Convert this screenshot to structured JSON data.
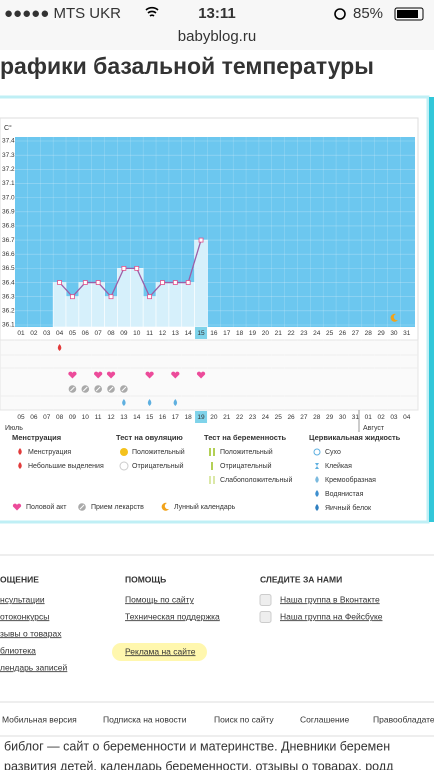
{
  "status_bar": {
    "carrier": "●●●●● MTS UKR",
    "time": "13:11",
    "battery": "85%"
  },
  "url": "babyblog.ru",
  "heading": "рафики базальной температуры",
  "chart_data": {
    "type": "line",
    "y_unit": "С°",
    "ylim": [
      36.1,
      37.4
    ],
    "yticks": [
      36.1,
      36.2,
      36.3,
      36.4,
      36.5,
      36.6,
      36.7,
      36.8,
      36.9,
      {
        "value": 37.0,
        "label": "37.0"
      },
      37.1,
      37.2,
      37.3,
      37.4
    ],
    "days": [
      {
        "label": "01"
      },
      {
        "label": "02"
      },
      {
        "label": "03"
      },
      {
        "label": "04"
      },
      {
        "label": "05"
      },
      {
        "label": "06"
      },
      {
        "label": "07"
      },
      {
        "label": "08"
      },
      {
        "label": "09"
      },
      {
        "label": "10"
      },
      {
        "label": "11"
      },
      {
        "label": "12"
      },
      {
        "label": "13"
      },
      {
        "label": "14"
      },
      {
        "label": "15",
        "current": true
      },
      {
        "label": "16"
      },
      {
        "label": "17"
      },
      {
        "label": "18"
      },
      {
        "label": "19"
      },
      {
        "label": "20"
      },
      {
        "label": "21"
      },
      {
        "label": "22"
      },
      {
        "label": "23"
      },
      {
        "label": "24"
      },
      {
        "label": "25"
      },
      {
        "label": "26"
      },
      {
        "label": "27"
      },
      {
        "label": "28"
      },
      {
        "label": "29"
      },
      {
        "label": "30"
      },
      {
        "label": "31"
      }
    ],
    "dates": [
      {
        "label": "05",
        "weekend": true
      },
      {
        "label": "06",
        "weekend": true
      },
      {
        "label": "07"
      },
      {
        "label": "08"
      },
      {
        "label": "09"
      },
      {
        "label": "10"
      },
      {
        "label": "11"
      },
      {
        "label": "12",
        "weekend": true
      },
      {
        "label": "13",
        "weekend": true
      },
      {
        "label": "14"
      },
      {
        "label": "15"
      },
      {
        "label": "16"
      },
      {
        "label": "17"
      },
      {
        "label": "18"
      },
      {
        "label": "19",
        "current": true
      },
      {
        "label": "20",
        "weekend": true
      },
      {
        "label": "21"
      },
      {
        "label": "22"
      },
      {
        "label": "23"
      },
      {
        "label": "24"
      },
      {
        "label": "25"
      },
      {
        "label": "26",
        "weekend": true
      },
      {
        "label": "27",
        "weekend": true
      },
      {
        "label": "28"
      },
      {
        "label": "29"
      },
      {
        "label": "30"
      },
      {
        "label": "31"
      },
      {
        "label": "01"
      },
      {
        "label": "02",
        "weekend": true
      },
      {
        "label": "03",
        "weekend": true
      },
      {
        "label": "04"
      }
    ],
    "month_start": "Июль",
    "month_next": "Август",
    "series": [
      {
        "name": "Температура",
        "color": "#9b5fa8",
        "values": [
          null,
          null,
          null,
          36.4,
          36.3,
          36.4,
          36.4,
          36.3,
          36.5,
          36.5,
          36.3,
          36.4,
          36.4,
          36.4,
          36.7,
          null,
          null,
          null,
          null,
          null,
          null,
          null,
          null,
          null,
          null,
          null,
          null,
          null,
          null,
          null,
          null
        ]
      }
    ],
    "events": {
      "menstruation": [
        "04"
      ],
      "intercourse": [
        "05",
        "07",
        "08",
        "11",
        "13",
        "15"
      ],
      "medication": [
        "05",
        "06",
        "07",
        "08",
        "09"
      ],
      "cervical": [
        "09",
        "11",
        "13"
      ],
      "moon": [
        "30"
      ]
    }
  },
  "legend": [
    {
      "title": "Менструация",
      "items": [
        "Менструация",
        "Небольшие выделения"
      ]
    },
    {
      "title": "Тест на овуляцию",
      "items": [
        "Положительный",
        "Отрицательный"
      ]
    },
    {
      "title": "Тест на беременность",
      "items": [
        "Положительный",
        "Отрицательный",
        "Слабоположительный"
      ]
    },
    {
      "title": "Цервикальная жидкость",
      "items": [
        "Сухо",
        "Клейкая",
        "Кремообразная",
        "Водянистая",
        "Яичный белок"
      ]
    }
  ],
  "legend_bottom": [
    "Половой акт",
    "Прием лекарств",
    "Лунный календарь"
  ],
  "footer": [
    {
      "title": "ОЩЕНИЕ",
      "items": [
        "нсультации",
        "отоконкурсы",
        "зывы о товарах",
        "блиотека",
        "лендарь записей"
      ]
    },
    {
      "title": "ПОМОЩЬ",
      "items": [
        "Помощь по сайту",
        "Техническая поддержка",
        "Реклама на сайте"
      ]
    },
    {
      "title": "СЛЕДИТЕ ЗА НАМИ",
      "items": [
        "Наша группа в Вконтакте",
        "Наша группа на Фейсбуке"
      ]
    }
  ],
  "bottom_links": [
    "Мобильная версия",
    "Подписка на новости",
    "Поиск по сайту",
    "Соглашение",
    "Правообладате"
  ],
  "description": [
    "библог — сайт о беременности и материнстве. Дневники беремен",
    "развития детей, календарь беременности, отзывы о товарах, родд"
  ]
}
